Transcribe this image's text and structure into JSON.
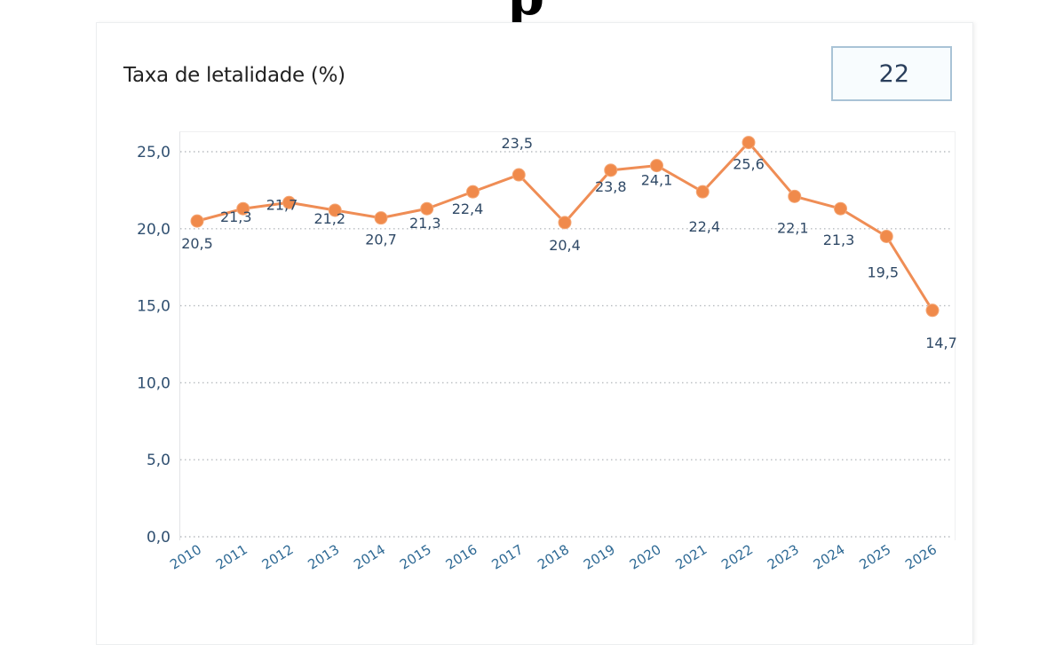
{
  "header": {
    "partial_heading_glyph": "p"
  },
  "card": {
    "title": "Taxa de letalidade (%)",
    "value": "22"
  },
  "colors": {
    "line": "#ef8d55",
    "marker": "#f08a4b",
    "axis_text": "#2f4f70",
    "grid": "#b8bcc0",
    "value_box_border": "#a9c3d6"
  },
  "chart_data": {
    "type": "line",
    "title": "Taxa de letalidade (%)",
    "xlabel": "",
    "ylabel": "",
    "ylim": [
      0,
      25
    ],
    "grid": true,
    "yticks": [
      0,
      5,
      10,
      15,
      20,
      25
    ],
    "ytick_labels": [
      "0,0",
      "5,0",
      "10,0",
      "15,0",
      "20,0",
      "25,0"
    ],
    "categories": [
      "2010",
      "2011",
      "2012",
      "2013",
      "2014",
      "2015",
      "2016",
      "2017",
      "2018",
      "2019",
      "2020",
      "2021",
      "2022",
      "2023",
      "2024",
      "2025",
      "2026"
    ],
    "series": [
      {
        "name": "Taxa de letalidade (%)",
        "values": [
          20.5,
          21.3,
          21.7,
          21.2,
          20.7,
          21.3,
          22.4,
          23.5,
          20.4,
          23.8,
          24.1,
          22.4,
          25.6,
          22.1,
          21.3,
          19.5,
          14.7
        ],
        "labels": [
          "20,5",
          "21,3",
          "21,7",
          "21,2",
          "20,7",
          "21,3",
          "22,4",
          "23,5",
          "20,4",
          "23,8",
          "24,1",
          "22,4",
          "25,6",
          "22,1",
          "21,3",
          "19,5",
          "14,7"
        ]
      }
    ]
  }
}
